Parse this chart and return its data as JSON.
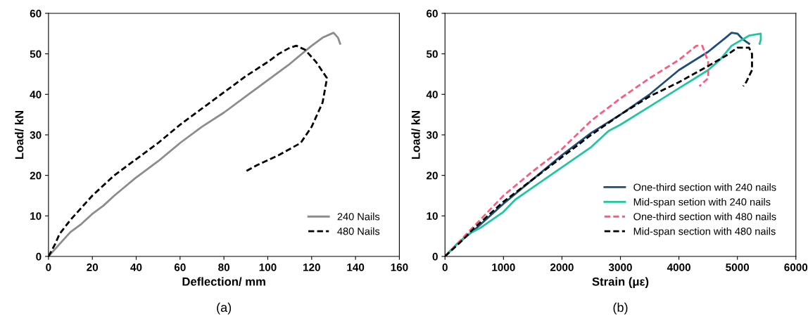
{
  "chart_data": [
    {
      "type": "line",
      "xlabel": "Deflection/ mm",
      "ylabel": "Load/ kN",
      "xlim": [
        0,
        160
      ],
      "ylim": [
        0,
        60
      ],
      "xticks": [
        0,
        20,
        40,
        60,
        80,
        100,
        120,
        140,
        160
      ],
      "yticks": [
        0,
        10,
        20,
        30,
        40,
        50,
        60
      ],
      "legend": "bottom right",
      "grid": false,
      "annotations": [
        "(a)"
      ],
      "series": [
        {
          "name": "240 Nails",
          "color": "#8c8c8c",
          "line_style": "solid",
          "x": [
            0,
            5,
            10,
            15,
            20,
            25,
            30,
            40,
            50,
            60,
            70,
            80,
            90,
            100,
            110,
            120,
            125,
            130,
            132,
            133
          ],
          "values": [
            0,
            3,
            6,
            8,
            10.5,
            12.5,
            15,
            19.5,
            23.5,
            28,
            32,
            35.5,
            39.5,
            43.5,
            47.5,
            52,
            54,
            55.2,
            54,
            52.5
          ]
        },
        {
          "name": "480 Nails",
          "color": "#000000",
          "line_style": "dashed",
          "x": [
            0,
            3,
            5,
            10,
            20,
            30,
            40,
            50,
            60,
            70,
            80,
            90,
            100,
            105,
            110,
            113,
            117,
            122,
            127,
            125,
            120,
            115,
            105,
            95,
            90
          ],
          "values": [
            0,
            3,
            5.5,
            9,
            15,
            20,
            24,
            28,
            32.5,
            36.5,
            40.5,
            44.5,
            48,
            50,
            51.5,
            52,
            51,
            48,
            44,
            38,
            32,
            28,
            25,
            22.5,
            21
          ]
        }
      ]
    },
    {
      "type": "line",
      "xlabel": "Strain (με)",
      "ylabel": "Load/ kN",
      "xlim": [
        0,
        6000
      ],
      "ylim": [
        0,
        60
      ],
      "xticks": [
        0,
        1000,
        2000,
        3000,
        4000,
        5000,
        6000
      ],
      "yticks": [
        0,
        10,
        20,
        30,
        40,
        50,
        60
      ],
      "legend": "bottom right",
      "grid": false,
      "annotations": [
        "(b)"
      ],
      "series": [
        {
          "name": "One-third section with 240 nails",
          "color": "#1f4e79",
          "line_style": "solid",
          "x": [
            0,
            200,
            500,
            1000,
            1500,
            2000,
            2500,
            3000,
            3500,
            4000,
            4500,
            4800,
            4900,
            5000,
            5100,
            5200
          ],
          "values": [
            0,
            3,
            6.5,
            13,
            19,
            25,
            30.5,
            35,
            40,
            46,
            50.5,
            54,
            55.2,
            55,
            53.5,
            52.5
          ]
        },
        {
          "name": "Mid-span setion with 240 nails",
          "color": "#1fc6a0",
          "line_style": "solid",
          "x": [
            0,
            200,
            400,
            600,
            1000,
            1200,
            1500,
            2000,
            2500,
            2800,
            3000,
            3500,
            4000,
            4500,
            4700,
            4900,
            5200,
            5400,
            5400,
            5380
          ],
          "values": [
            0,
            3,
            5.5,
            7,
            11,
            14,
            17,
            22,
            27,
            31,
            32.5,
            37,
            41.5,
            46,
            48.5,
            52,
            54.5,
            55,
            53.5,
            52.5
          ]
        },
        {
          "name": "One-third section with 480 nails",
          "color": "#ff5a7e",
          "line_style": "dashed",
          "x": [
            0,
            200,
            500,
            1000,
            1500,
            2000,
            2500,
            3000,
            3500,
            4000,
            4300,
            4400,
            4500,
            4500,
            4350
          ],
          "values": [
            0,
            3,
            7.5,
            15,
            21,
            26.5,
            33.5,
            39,
            44,
            48.5,
            52,
            52,
            48,
            44,
            42
          ]
        },
        {
          "name": "Mid-span section with 480 nails",
          "color": "#000000",
          "line_style": "dashed",
          "x": [
            0,
            300,
            500,
            1000,
            1500,
            2000,
            2500,
            3000,
            3500,
            4000,
            4500,
            4800,
            5000,
            5200,
            5250,
            5250,
            5150,
            5100
          ],
          "values": [
            0,
            4,
            7,
            13.5,
            19,
            24.5,
            30,
            35,
            39.5,
            43,
            47,
            49.5,
            51.5,
            51.5,
            50,
            46,
            43,
            42
          ]
        }
      ]
    }
  ]
}
